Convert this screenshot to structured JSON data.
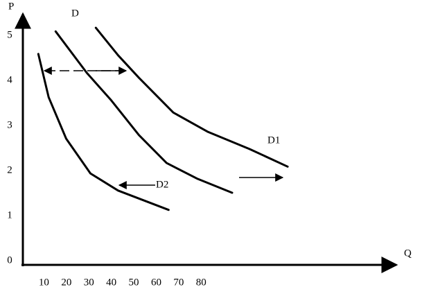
{
  "chart_data": {
    "type": "line",
    "x_label": "Q",
    "y_label": "P",
    "xlim": [
      0,
      170
    ],
    "ylim": [
      0,
      5.6
    ],
    "xticks": [
      10,
      20,
      30,
      40,
      50,
      60,
      70,
      80
    ],
    "yticks": [
      0,
      1,
      2,
      3,
      4,
      5
    ],
    "grid": false,
    "series": [
      {
        "name": "D",
        "color": "#000000",
        "x": [
          15.2,
          29.1,
          40,
          52.3,
          64.6,
          78.4,
          93.8
        ],
        "values": [
          5.18,
          4.26,
          3.65,
          2.88,
          2.26,
          1.91,
          1.6
        ]
      },
      {
        "name": "D1",
        "color": "#000000",
        "x": [
          33.1,
          43,
          52.3,
          67.6,
          83.1,
          101.6,
          118.5
        ],
        "values": [
          5.26,
          4.65,
          4.15,
          3.38,
          2.95,
          2.57,
          2.18
        ]
      },
      {
        "name": "D2",
        "color": "#000000",
        "x": [
          7.5,
          12.1,
          19.9,
          30.7,
          43,
          65.5
        ],
        "values": [
          4.68,
          3.72,
          2.8,
          2.03,
          1.65,
          1.22
        ]
      }
    ]
  }
}
